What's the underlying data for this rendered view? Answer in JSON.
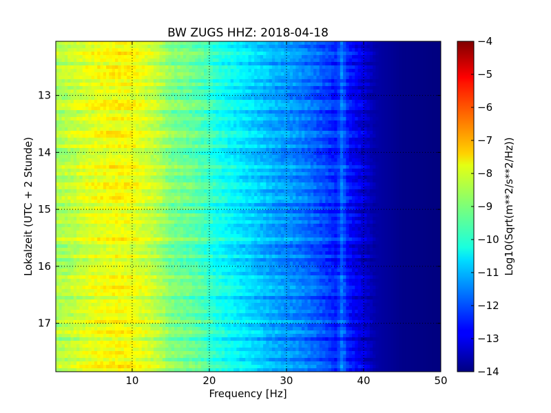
{
  "chart_data": {
    "type": "heatmap",
    "title": "BW ZUGS HHZ: 2018-04-18",
    "xlabel": "Frequency [Hz]",
    "ylabel": "Lokalzeit (UTC + 2 Stunde)",
    "colorbar_label": "Log10(Sqrt(m**2/s**2/Hz))",
    "xlim": [
      0.1,
      50
    ],
    "ylim": [
      17.85,
      12.05
    ],
    "y_inverted": true,
    "x_ticks": [
      10,
      20,
      30,
      40,
      50
    ],
    "x_tick_labels": [
      "10",
      "20",
      "30",
      "40",
      "50"
    ],
    "y_ticks": [
      13,
      14,
      15,
      16,
      17
    ],
    "y_tick_labels": [
      "13",
      "14",
      "15",
      "16",
      "17"
    ],
    "colorbar_range": [
      -14,
      -4
    ],
    "colorbar_ticks": [
      -4,
      -5,
      -6,
      -7,
      -8,
      -9,
      -10,
      -11,
      -12,
      -13,
      -14
    ],
    "colorbar_tick_labels": [
      "−4",
      "−5",
      "−6",
      "−7",
      "−8",
      "−9",
      "−10",
      "−11",
      "−12",
      "−13",
      "−14"
    ],
    "colormap": "jet",
    "grid": "dotted",
    "spectrum_profile": {
      "frequency_hz": [
        0.1,
        2,
        5,
        8,
        10,
        12,
        13.5,
        15,
        18,
        19.5,
        21,
        23,
        25,
        27,
        29,
        31,
        33,
        35,
        36.5,
        37.2,
        38,
        39,
        40.5,
        41.5,
        45,
        50
      ],
      "log10_amplitude": [
        -8.6,
        -8.4,
        -8.0,
        -7.8,
        -7.9,
        -8.2,
        -8.5,
        -9.0,
        -9.3,
        -9.6,
        -10.0,
        -10.3,
        -10.6,
        -10.9,
        -11.2,
        -11.4,
        -11.7,
        -12.1,
        -12.5,
        -11.6,
        -12.6,
        -12.9,
        -13.3,
        -13.6,
        -13.9,
        -14.0
      ]
    },
    "series": []
  }
}
